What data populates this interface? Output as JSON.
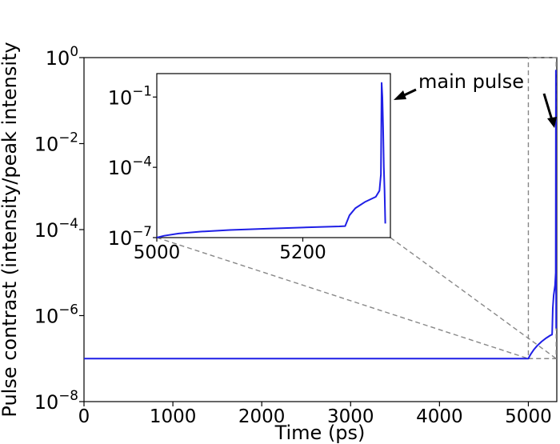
{
  "chart_data": [
    {
      "type": "line",
      "xlabel": "Time (ps)",
      "ylabel": "Pulse contrast (intensity/peak intensity",
      "xlim": [
        0,
        5320
      ],
      "ylim": [
        1e-08,
        1
      ],
      "yscale": "log",
      "x_ticks": [
        {
          "value": 0,
          "label": "0"
        },
        {
          "value": 1000,
          "label": "1000"
        },
        {
          "value": 2000,
          "label": "2000"
        },
        {
          "value": 3000,
          "label": "3000"
        },
        {
          "value": 4000,
          "label": "4000"
        },
        {
          "value": 5000,
          "label": "5000"
        }
      ],
      "y_ticks": [
        {
          "value": 1e-08,
          "base": "10",
          "exp": "−8"
        },
        {
          "value": 1e-06,
          "base": "10",
          "exp": "−6"
        },
        {
          "value": 0.0001,
          "base": "10",
          "exp": "−4"
        },
        {
          "value": 0.01,
          "base": "10",
          "exp": "−2"
        },
        {
          "value": 1,
          "base": "10",
          "exp": "0"
        }
      ],
      "series": [
        {
          "color": "#1f1fe6",
          "x": [
            0,
            5000,
            5010,
            5030,
            5060,
            5100,
            5150,
            5200,
            5250,
            5266,
            5268,
            5275,
            5285,
            5300,
            5308,
            5309,
            5310,
            5311,
            5312,
            5313
          ],
          "y": [
            1e-07,
            1e-07,
            1.1e-07,
            1.3e-07,
            1.6e-07,
            2e-07,
            2.5e-07,
            3e-07,
            3.5e-07,
            3.6e-07,
            4e-07,
            1.5e-06,
            3e-06,
            5e-06,
            1e-05,
            0.001,
            0.5,
            0.01,
            1e-05,
            5e-07
          ]
        }
      ],
      "annotation": {
        "text": "main pulse",
        "points_to": {
          "x": 5313,
          "y": 0.01
        }
      },
      "zoom_box": {
        "x": [
          5000,
          5313
        ],
        "y": [
          1e-07,
          1
        ]
      },
      "grid": false
    },
    {
      "type": "line",
      "inset": true,
      "xlim": [
        5000,
        5320
      ],
      "ylim": [
        1e-07,
        1
      ],
      "yscale": "log",
      "x_ticks": [
        {
          "value": 5000,
          "label": "5000"
        },
        {
          "value": 5200,
          "label": "5200"
        }
      ],
      "y_ticks": [
        {
          "value": 1e-07,
          "base": "10",
          "exp": "−7"
        },
        {
          "value": 0.0001,
          "base": "10",
          "exp": "−4"
        },
        {
          "value": 0.1,
          "base": "10",
          "exp": "−1"
        }
      ],
      "series": [
        {
          "color": "#1f1fe6",
          "x": [
            5000,
            5010,
            5030,
            5060,
            5100,
            5150,
            5200,
            5250,
            5258,
            5264,
            5272,
            5285,
            5300,
            5305,
            5307,
            5308,
            5309,
            5310,
            5311,
            5312,
            5313
          ],
          "y": [
            1e-07,
            1.2e-07,
            1.5e-07,
            1.8e-07,
            2.1e-07,
            2.4e-07,
            2.7e-07,
            3e-07,
            3.1e-07,
            9e-07,
            1.8e-06,
            3.3e-06,
            5.5e-06,
            1e-05,
            5e-05,
            0.4,
            0.1,
            0.005,
            0.0001,
            1e-05,
            4e-07
          ]
        }
      ],
      "grid": false
    }
  ]
}
